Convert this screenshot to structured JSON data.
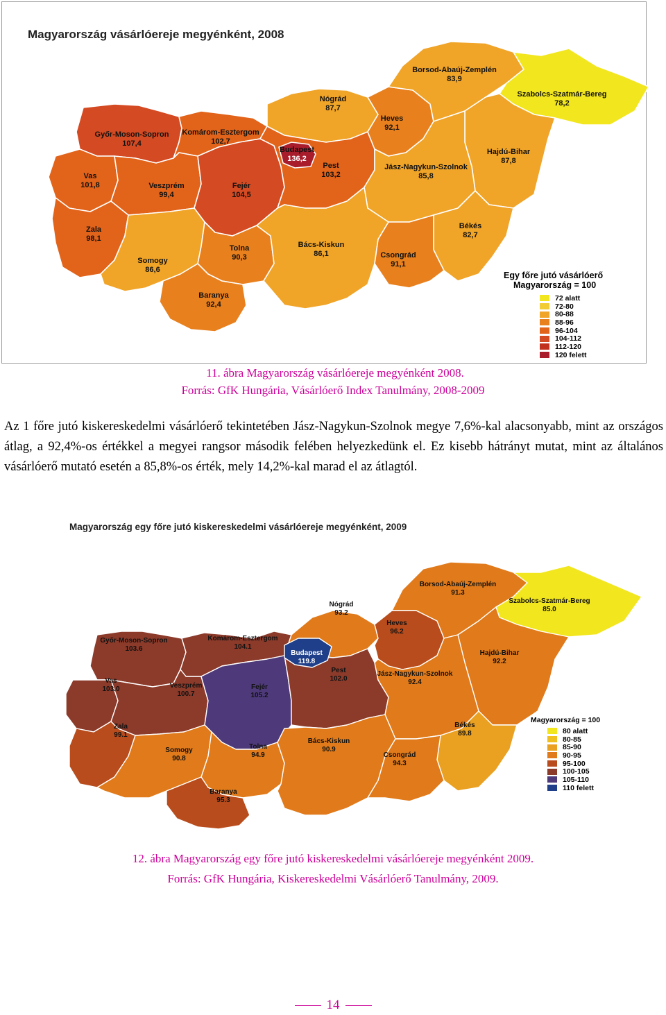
{
  "map1": {
    "title": "Magyarország vásárlóereje megyénként, 2008",
    "legend_title1": "Egy főre jutó vásárlóerő",
    "legend_title2": "Magyarország = 100",
    "legend": [
      {
        "label": "72 alatt",
        "color": "#f2e61e"
      },
      {
        "label": "72-80",
        "color": "#f2cc33"
      },
      {
        "label": "80-88",
        "color": "#f0a428"
      },
      {
        "label": "88-96",
        "color": "#e8801e"
      },
      {
        "label": "96-104",
        "color": "#e2631a"
      },
      {
        "label": "104-112",
        "color": "#d44a22"
      },
      {
        "label": "112-120",
        "color": "#c0301c"
      },
      {
        "label": "120 felett",
        "color": "#a81c2c"
      }
    ],
    "counties": [
      {
        "name": "Borsod-Abaúj-Zemplén",
        "value": "83,9"
      },
      {
        "name": "Szabolcs-Szatmár-Bereg",
        "value": "78,2"
      },
      {
        "name": "Nógrád",
        "value": "87,7"
      },
      {
        "name": "Heves",
        "value": "92,1"
      },
      {
        "name": "Győr-Moson-Sopron",
        "value": "107,4"
      },
      {
        "name": "Komárom-Esztergom",
        "value": "102,7"
      },
      {
        "name": "Budapest",
        "value": "136,2"
      },
      {
        "name": "Pest",
        "value": "103,2"
      },
      {
        "name": "Hajdú-Bihar",
        "value": "87,8"
      },
      {
        "name": "Jász-Nagykun-Szolnok",
        "value": "85,8"
      },
      {
        "name": "Vas",
        "value": "101,8"
      },
      {
        "name": "Veszprém",
        "value": "99,4"
      },
      {
        "name": "Fejér",
        "value": "104,5"
      },
      {
        "name": "Zala",
        "value": "98,1"
      },
      {
        "name": "Békés",
        "value": "82,7"
      },
      {
        "name": "Tolna",
        "value": "90,3"
      },
      {
        "name": "Bács-Kiskun",
        "value": "86,1"
      },
      {
        "name": "Csongrád",
        "value": "91,1"
      },
      {
        "name": "Somogy",
        "value": "86,6"
      },
      {
        "name": "Baranya",
        "value": "92,4"
      }
    ]
  },
  "caption1": {
    "line1": "11. ábra Magyarország vásárlóereje megyénként 2008.",
    "line2": "Forrás: GfK Hungária, Vásárlóerő Index Tanulmány, 2008-2009"
  },
  "paragraph": "Az 1 főre jutó kiskereskedelmi vásárlóerő tekintetében Jász-Nagykun-Szolnok megye 7,6%-kal alacsonyabb, mint az országos átlag, a 92,4%-os értékkel a megyei rangsor második felében helyezkedünk el. Ez kisebb hátrányt mutat, mint az általános vásárlóerő mutató esetén a 85,8%-os érték, mely 14,2%-kal marad el az átlagtól.",
  "map2": {
    "title": "Magyarország egy főre jutó kiskereskedelmi vásárlóereje megyénként, 2009",
    "legend_title": "Magyarország = 100",
    "legend": [
      {
        "label": "80 alatt",
        "color": "#f2e61e"
      },
      {
        "label": "80-85",
        "color": "#f0c020"
      },
      {
        "label": "85-90",
        "color": "#eaa020"
      },
      {
        "label": "90-95",
        "color": "#e07a1a"
      },
      {
        "label": "95-100",
        "color": "#b84c1c"
      },
      {
        "label": "100-105",
        "color": "#8c3a2a"
      },
      {
        "label": "105-110",
        "color": "#4e3a7a"
      },
      {
        "label": "110 felett",
        "color": "#1f3f8a"
      }
    ],
    "counties": [
      {
        "name": "Borsod-Abaúj-Zemplén",
        "value": "91.3"
      },
      {
        "name": "Szabolcs-Szatmár-Bereg",
        "value": "85.0"
      },
      {
        "name": "Nógrád",
        "value": "93.2"
      },
      {
        "name": "Heves",
        "value": "96.2"
      },
      {
        "name": "Győr-Moson-Sopron",
        "value": "103.6"
      },
      {
        "name": "Komárom-Esztergom",
        "value": "104.1"
      },
      {
        "name": "Budapest",
        "value": "119.8"
      },
      {
        "name": "Hajdú-Bihar",
        "value": "92.2"
      },
      {
        "name": "Pest",
        "value": "102.0"
      },
      {
        "name": "Jász-Nagykun-Szolnok",
        "value": "92.4"
      },
      {
        "name": "Vas",
        "value": "103.0"
      },
      {
        "name": "Veszprém",
        "value": "100.7"
      },
      {
        "name": "Fejér",
        "value": "105.2"
      },
      {
        "name": "Zala",
        "value": "99.1"
      },
      {
        "name": "Békés",
        "value": "89.8"
      },
      {
        "name": "Somogy",
        "value": "90.8"
      },
      {
        "name": "Tolna",
        "value": "94.9"
      },
      {
        "name": "Bács-Kiskun",
        "value": "90.9"
      },
      {
        "name": "Csongrád",
        "value": "94.3"
      },
      {
        "name": "Baranya",
        "value": "95.3"
      }
    ]
  },
  "caption2": {
    "line1": "12. ábra Magyarország egy főre jutó kiskereskedelmi vásárlóereje megyénként 2009.",
    "line2": "Forrás: GfK Hungária, Kiskereskedelmi Vásárlóerő Tanulmány, 2009."
  },
  "page_number": "14"
}
